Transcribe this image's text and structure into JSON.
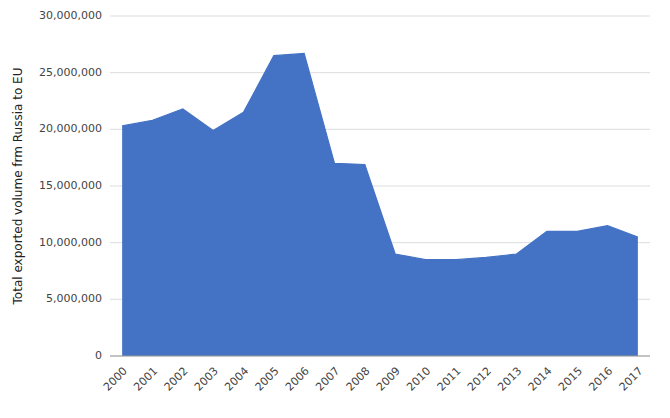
{
  "chart_data": {
    "type": "area",
    "ylabel": "Total exported volume frm Russia to EU",
    "x": [
      2000,
      2001,
      2002,
      2003,
      2004,
      2005,
      2006,
      2007,
      2008,
      2009,
      2010,
      2011,
      2012,
      2013,
      2014,
      2015,
      2016,
      2017
    ],
    "values": [
      20300000,
      20800000,
      21800000,
      19900000,
      21500000,
      26500000,
      26700000,
      17000000,
      16900000,
      9000000,
      8500000,
      8500000,
      8700000,
      9000000,
      11000000,
      11000000,
      11500000,
      10500000
    ],
    "color": "#4472C4",
    "xlim": [
      1999.6,
      2017.4
    ],
    "xticks": [
      2000,
      2001,
      2002,
      2003,
      2004,
      2005,
      2006,
      2007,
      2008,
      2009,
      2010,
      2011,
      2012,
      2013,
      2014,
      2015,
      2016,
      2017
    ],
    "ylim": [
      0,
      30000000
    ],
    "yticks": [
      0,
      {
        "value": 5000000,
        "label": "5,000,000"
      },
      {
        "value": 10000000,
        "label": "10,000,000"
      },
      {
        "value": 15000000,
        "label": "15,000,000"
      },
      {
        "value": 20000000,
        "label": "20,000,000"
      },
      {
        "value": 25000000,
        "label": "25,000,000"
      },
      {
        "value": 30000000,
        "label": "30,000,000"
      }
    ],
    "grid": true
  }
}
